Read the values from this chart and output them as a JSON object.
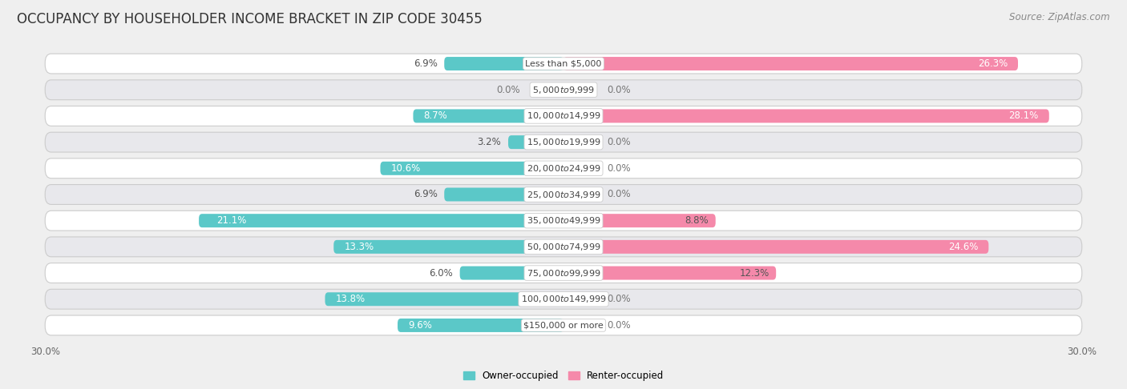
{
  "title": "OCCUPANCY BY HOUSEHOLDER INCOME BRACKET IN ZIP CODE 30455",
  "source": "Source: ZipAtlas.com",
  "categories": [
    "Less than $5,000",
    "$5,000 to $9,999",
    "$10,000 to $14,999",
    "$15,000 to $19,999",
    "$20,000 to $24,999",
    "$25,000 to $34,999",
    "$35,000 to $49,999",
    "$50,000 to $74,999",
    "$75,000 to $99,999",
    "$100,000 to $149,999",
    "$150,000 or more"
  ],
  "owner_values": [
    6.9,
    0.0,
    8.7,
    3.2,
    10.6,
    6.9,
    21.1,
    13.3,
    6.0,
    13.8,
    9.6
  ],
  "renter_values": [
    26.3,
    0.0,
    28.1,
    0.0,
    0.0,
    0.0,
    8.8,
    24.6,
    12.3,
    0.0,
    0.0
  ],
  "owner_color": "#5bc8c8",
  "renter_color": "#f589aa",
  "owner_label": "Owner-occupied",
  "renter_label": "Renter-occupied",
  "xlim": 30.0,
  "bar_height": 0.52,
  "bg_color": "#efefef",
  "row_colors": [
    "#ffffff",
    "#e8e8ec"
  ],
  "title_fontsize": 12,
  "label_fontsize": 8.5,
  "cat_fontsize": 8.0,
  "axis_fontsize": 8.5,
  "source_fontsize": 8.5
}
